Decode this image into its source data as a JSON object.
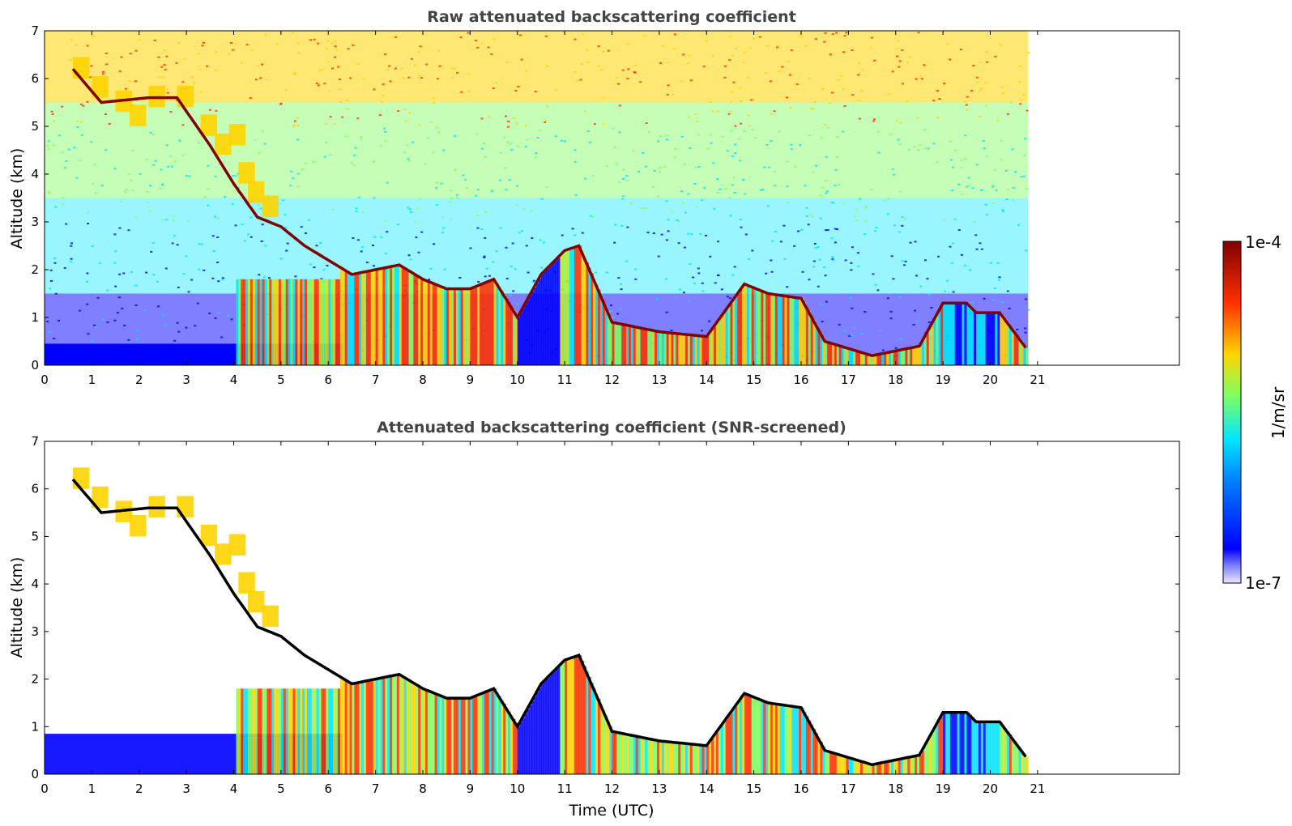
{
  "chart_data": [
    {
      "type": "heatmap",
      "title": "Raw attenuated backscattering coefficient",
      "xlabel": "",
      "ylabel": "Altitude (km)",
      "xlim": [
        0,
        24
      ],
      "ylim": [
        0,
        7
      ],
      "x_ticks": [
        0,
        1,
        2,
        3,
        4,
        5,
        6,
        7,
        8,
        9,
        10,
        11,
        12,
        13,
        14,
        15,
        16,
        17,
        18,
        19,
        20,
        21
      ],
      "y_ticks": [
        0,
        1,
        2,
        3,
        4,
        5,
        6,
        7
      ],
      "data_x_range": [
        0,
        20.8
      ],
      "color_scale": "log",
      "grid": false,
      "cloud_base_trace": {
        "x": [
          0.6,
          1.2,
          2.2,
          2.8,
          3.5,
          4.0,
          4.5,
          5.0,
          5.5,
          6.0,
          6.5,
          7.0,
          7.5,
          8.0,
          8.5,
          9.0,
          9.5,
          10.0,
          10.5,
          11.0,
          11.3,
          12.0,
          13.0,
          14.0,
          14.8,
          15.3,
          16.0,
          16.5,
          17.5,
          18.5,
          19.0,
          19.5,
          19.7,
          20.2,
          20.8
        ],
        "y": [
          6.2,
          5.5,
          5.6,
          5.6,
          4.6,
          3.8,
          3.1,
          2.9,
          2.5,
          2.2,
          1.9,
          2.0,
          2.1,
          1.8,
          1.6,
          1.6,
          1.8,
          1.0,
          1.9,
          2.4,
          2.5,
          0.9,
          0.7,
          0.6,
          1.7,
          1.5,
          1.4,
          0.5,
          0.2,
          0.4,
          1.3,
          1.3,
          1.1,
          1.1,
          0.3
        ]
      }
    },
    {
      "type": "heatmap",
      "title": "Attenuated backscattering coefficient (SNR-screened)",
      "xlabel": "Time (UTC)",
      "ylabel": "Altitude (km)",
      "xlim": [
        0,
        24
      ],
      "ylim": [
        0,
        7
      ],
      "x_ticks": [
        0,
        1,
        2,
        3,
        4,
        5,
        6,
        7,
        8,
        9,
        10,
        11,
        12,
        13,
        14,
        15,
        16,
        17,
        18,
        19,
        20,
        21
      ],
      "y_ticks": [
        0,
        1,
        2,
        3,
        4,
        5,
        6,
        7
      ],
      "data_x_range": [
        0,
        20.8
      ],
      "color_scale": "log",
      "grid": false
    }
  ],
  "colorbar": {
    "label": "1/m/sr",
    "max_label": "1e-4",
    "min_label": "1e-7",
    "min": 1e-07,
    "max": 0.0001,
    "colormap": "jet"
  },
  "colors": {
    "low": "#0000ff",
    "mid_low": "#00e5ff",
    "mid": "#7fff5f",
    "mid_high": "#ffd400",
    "high": "#ff3000",
    "max": "#800000",
    "title": "#444444"
  }
}
